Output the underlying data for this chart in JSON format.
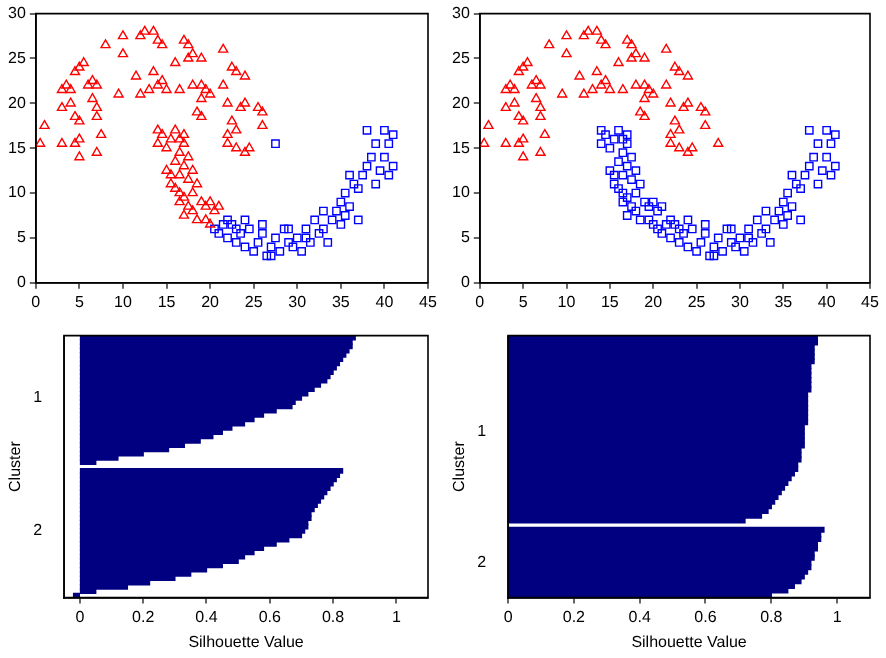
{
  "chart_data": [
    {
      "type": "scatter",
      "xlim": [
        0,
        45
      ],
      "ylim": [
        0,
        30
      ],
      "xticks": [
        0,
        5,
        10,
        15,
        20,
        25,
        30,
        35,
        40,
        45
      ],
      "yticks": [
        0,
        5,
        10,
        15,
        20,
        25,
        30
      ],
      "series": [
        {
          "color": "#ff0000",
          "marker": "triangle",
          "x": [
            1,
            0.5,
            3,
            5,
            5,
            4.5,
            7,
            7.5,
            3,
            3.5,
            4,
            3,
            4,
            4.5,
            5,
            5,
            5.5,
            4.5,
            6,
            6.5,
            7,
            6.5,
            7,
            7,
            9.5,
            8,
            10,
            10,
            11.5,
            12,
            12.5,
            13.5,
            14,
            14.5,
            12,
            13,
            13.5,
            14,
            14.5,
            15,
            16,
            16.5,
            17,
            17.5,
            17.5,
            18,
            19,
            18,
            19,
            19.5,
            20,
            19,
            18.5,
            19,
            21.5,
            21.5,
            22,
            22.5,
            23,
            24,
            22.5,
            22,
            22,
            23,
            23.5,
            24,
            23,
            24,
            24.5,
            25.5,
            26,
            26,
            14,
            14.5,
            14,
            15,
            15.5,
            16,
            16.5,
            17,
            16.5,
            17.5,
            17,
            16,
            15.5,
            15,
            16.5,
            17.5,
            16,
            16.5,
            17,
            18,
            18.5,
            17.5,
            18,
            19,
            19.5,
            20,
            18.5,
            19.5,
            20.5,
            21,
            20,
            17,
            16.5,
            15.5,
            18,
            17
          ],
          "values": [
            17.5,
            15.5,
            15.5,
            14,
            16,
            15.5,
            14.5,
            16.5,
            21.5,
            22,
            21.5,
            19.5,
            20,
            18.5,
            18,
            24,
            24.5,
            23.5,
            22,
            22.5,
            22,
            20.5,
            19.5,
            18.5,
            21,
            26.5,
            27.5,
            25.5,
            23,
            27.5,
            28,
            28,
            27,
            26.5,
            21,
            21.5,
            23.5,
            22,
            22.5,
            21.5,
            24.5,
            21.5,
            27,
            26.5,
            25,
            25.5,
            25,
            22,
            22,
            21.5,
            21,
            20.5,
            19,
            18.5,
            26,
            22,
            20,
            24,
            23.5,
            23,
            18,
            16.5,
            15.5,
            17,
            19.5,
            20,
            15,
            14.5,
            15,
            19.5,
            19,
            17.5,
            17,
            16.5,
            15.5,
            15,
            16,
            17,
            16,
            15.5,
            14.5,
            14,
            13,
            13.5,
            12,
            12.5,
            12,
            11.5,
            10.5,
            10,
            9.5,
            10,
            11,
            8.5,
            8,
            9,
            8.5,
            9,
            7,
            7,
            8,
            8.5,
            6.5,
            7.5,
            9,
            11,
            12.5,
            16.5
          ]
        },
        {
          "color": "#0000ff",
          "marker": "square",
          "x": [
            20.5,
            21,
            22,
            22.5,
            23,
            23.5,
            24,
            24.5,
            25,
            25.5,
            26,
            26.5,
            27,
            27.5,
            28,
            28.5,
            29,
            29.5,
            30,
            30.5,
            31,
            31.5,
            32,
            32.5,
            33,
            33.5,
            34,
            34.5,
            35,
            35,
            35.5,
            36,
            36.5,
            37,
            37.5,
            37,
            38,
            38,
            38.5,
            39,
            39.5,
            40,
            40,
            40.5,
            41,
            41,
            40.5,
            39,
            36,
            35.5,
            22,
            23,
            21.5,
            24,
            26,
            29,
            31,
            33,
            27,
            27.5
          ],
          "values": [
            6,
            5.5,
            5,
            6.5,
            4.5,
            5.5,
            4,
            6,
            3.5,
            4.5,
            5.5,
            3,
            4,
            5,
            3.5,
            6,
            4.5,
            4,
            5,
            3.5,
            6,
            4.5,
            7,
            5.5,
            6,
            4.5,
            7,
            8,
            6.5,
            9,
            10,
            8.5,
            11,
            10.5,
            12,
            7,
            13,
            17,
            14,
            15.5,
            12.5,
            17,
            14,
            15.5,
            16.5,
            13,
            12,
            11,
            12,
            7.5,
            7,
            6,
            6.5,
            7,
            6.5,
            6,
            5,
            8,
            3,
            15.5
          ]
        }
      ]
    },
    {
      "type": "scatter",
      "xlim": [
        0,
        45
      ],
      "ylim": [
        0,
        30
      ],
      "xticks": [
        0,
        5,
        10,
        15,
        20,
        25,
        30,
        35,
        40,
        45
      ],
      "yticks": [
        0,
        5,
        10,
        15,
        20,
        25,
        30
      ],
      "series": [
        {
          "color": "#ff0000",
          "marker": "triangle",
          "x": [
            1,
            0.5,
            3,
            5,
            5,
            4.5,
            7,
            7.5,
            3,
            3.5,
            4,
            3,
            4,
            4.5,
            5,
            5,
            5.5,
            4.5,
            6,
            6.5,
            7,
            6.5,
            7,
            7,
            9.5,
            8,
            10,
            10,
            11.5,
            12,
            12.5,
            13.5,
            14,
            14.5,
            12,
            13,
            13.5,
            14,
            14.5,
            15,
            16,
            16.5,
            17,
            17.5,
            17.5,
            18,
            19,
            18,
            19,
            19.5,
            20,
            19,
            18.5,
            19,
            21.5,
            21.5,
            22,
            22.5,
            23,
            24,
            22.5,
            22,
            22,
            23,
            23.5,
            24,
            23,
            24,
            24.5,
            25.5,
            26,
            26,
            27.5
          ],
          "values": [
            17.5,
            15.5,
            15.5,
            14,
            16,
            15.5,
            14.5,
            16.5,
            21.5,
            22,
            21.5,
            19.5,
            20,
            18.5,
            18,
            24,
            24.5,
            23.5,
            22,
            22.5,
            22,
            20.5,
            19.5,
            18.5,
            21,
            26.5,
            27.5,
            25.5,
            23,
            27.5,
            28,
            28,
            27,
            26.5,
            21,
            21.5,
            23.5,
            22,
            22.5,
            21.5,
            24.5,
            21.5,
            27,
            26.5,
            25,
            25.5,
            25,
            22,
            22,
            21.5,
            21,
            20.5,
            19,
            18.5,
            26,
            22,
            20,
            24,
            23.5,
            23,
            18,
            16.5,
            15.5,
            17,
            19.5,
            20,
            15,
            14.5,
            15,
            19.5,
            19,
            17.5,
            15.5
          ]
        },
        {
          "color": "#0000ff",
          "marker": "square",
          "x": [
            14,
            14.5,
            14,
            15,
            15.5,
            16,
            16.5,
            17,
            16.5,
            17.5,
            17,
            16,
            15.5,
            15,
            16.5,
            17.5,
            16,
            16.5,
            17,
            18,
            18.5,
            17.5,
            18,
            19,
            19.5,
            20,
            18.5,
            19.5,
            20.5,
            21,
            20,
            17,
            16.5,
            15.5,
            18,
            17,
            20.5,
            21,
            22,
            22.5,
            23,
            23.5,
            24,
            24.5,
            25,
            25.5,
            26,
            26.5,
            27,
            27.5,
            28,
            28.5,
            29,
            29.5,
            30,
            30.5,
            31,
            31.5,
            32,
            32.5,
            33,
            33.5,
            34,
            34.5,
            35,
            35,
            35.5,
            36,
            36.5,
            37,
            37.5,
            37,
            38,
            38,
            38.5,
            39,
            39.5,
            40,
            40,
            40.5,
            41,
            41,
            40.5,
            39,
            36,
            35.5,
            22,
            23,
            21.5,
            24,
            26,
            29,
            31,
            33,
            27
          ],
          "values": [
            17,
            16.5,
            15.5,
            15,
            16,
            17,
            16,
            15.5,
            14.5,
            14,
            13,
            13.5,
            12,
            12.5,
            12,
            11.5,
            10.5,
            10,
            9.5,
            10,
            11,
            8.5,
            8,
            9,
            8.5,
            9,
            7,
            7,
            8,
            8.5,
            6.5,
            7.5,
            9,
            11,
            12.5,
            16.5,
            6,
            5.5,
            5,
            6.5,
            4.5,
            5.5,
            4,
            6,
            3.5,
            4.5,
            5.5,
            3,
            4,
            5,
            3.5,
            6,
            4.5,
            4,
            5,
            3.5,
            6,
            4.5,
            7,
            5.5,
            6,
            4.5,
            7,
            8,
            6.5,
            9,
            10,
            8.5,
            11,
            10.5,
            12,
            7,
            13,
            17,
            14,
            15.5,
            12.5,
            17,
            14,
            15.5,
            16.5,
            13,
            12,
            11,
            12,
            7.5,
            7,
            6,
            6.5,
            7,
            6.5,
            6,
            5,
            8,
            3
          ]
        }
      ]
    },
    {
      "type": "bar",
      "orientation": "horizontal",
      "xlabel": "Silhouette Value",
      "ylabel": "Cluster",
      "color": "#000080",
      "xlim": [
        -0.05,
        1.1
      ],
      "xticks": [
        0,
        0.2,
        0.4,
        0.6,
        0.8,
        1
      ],
      "categories": [
        null,
        null,
        null,
        null,
        null,
        null,
        null,
        null,
        null,
        null,
        null,
        null,
        null,
        null,
        "1",
        null,
        null,
        null,
        null,
        null,
        null,
        null,
        null,
        null,
        null,
        null,
        null,
        null,
        null,
        null,
        null,
        null,
        null,
        null,
        null,
        null,
        null,
        null,
        null,
        null,
        null,
        null,
        null,
        null,
        null,
        "2",
        null,
        null,
        null,
        null,
        null,
        null,
        null,
        null,
        null,
        null,
        null,
        null,
        null,
        null,
        null
      ],
      "values": [
        0.87,
        0.86,
        0.86,
        0.85,
        0.84,
        0.83,
        0.82,
        0.81,
        0.8,
        0.79,
        0.78,
        0.76,
        0.74,
        0.72,
        0.7,
        0.68,
        0.67,
        0.62,
        0.58,
        0.55,
        0.52,
        0.48,
        0.45,
        0.42,
        0.38,
        0.33,
        0.28,
        0.2,
        0.12,
        0.05,
        null,
        0.83,
        0.82,
        0.81,
        0.8,
        0.79,
        0.78,
        0.77,
        0.76,
        0.75,
        0.74,
        0.73,
        0.73,
        0.72,
        0.72,
        0.71,
        0.7,
        0.66,
        0.62,
        0.58,
        0.55,
        0.52,
        0.5,
        0.45,
        0.4,
        0.35,
        0.3,
        0.22,
        0.15,
        0.05,
        -0.02
      ]
    },
    {
      "type": "bar",
      "orientation": "horizontal",
      "xlabel": "Silhouette Value",
      "ylabel": "Cluster",
      "color": "#000080",
      "xlim": [
        0,
        1.1
      ],
      "xticks": [
        0,
        0.2,
        0.4,
        0.6,
        0.8,
        1
      ],
      "categories": [
        null,
        null,
        null,
        null,
        null,
        null,
        null,
        null,
        null,
        null,
        null,
        null,
        null,
        null,
        null,
        null,
        null,
        null,
        null,
        null,
        "1",
        null,
        null,
        null,
        null,
        null,
        null,
        null,
        null,
        null,
        null,
        null,
        null,
        null,
        null,
        null,
        null,
        null,
        null,
        null,
        null,
        null,
        null,
        null,
        null,
        null,
        null,
        null,
        "2",
        null,
        null,
        null,
        null,
        null,
        null,
        null
      ],
      "values": [
        0.94,
        0.94,
        0.93,
        0.93,
        0.93,
        0.93,
        0.92,
        0.92,
        0.92,
        0.92,
        0.92,
        0.92,
        0.91,
        0.91,
        0.91,
        0.91,
        0.91,
        0.91,
        0.91,
        0.9,
        0.9,
        0.9,
        0.9,
        0.9,
        0.89,
        0.89,
        0.89,
        0.88,
        0.88,
        0.87,
        0.86,
        0.85,
        0.84,
        0.83,
        0.82,
        0.81,
        0.8,
        0.79,
        0.77,
        0.72,
        null,
        0.96,
        0.95,
        0.95,
        0.94,
        0.94,
        0.93,
        0.93,
        0.92,
        0.92,
        0.91,
        0.9,
        0.89,
        0.87,
        0.85,
        0.8
      ]
    }
  ]
}
